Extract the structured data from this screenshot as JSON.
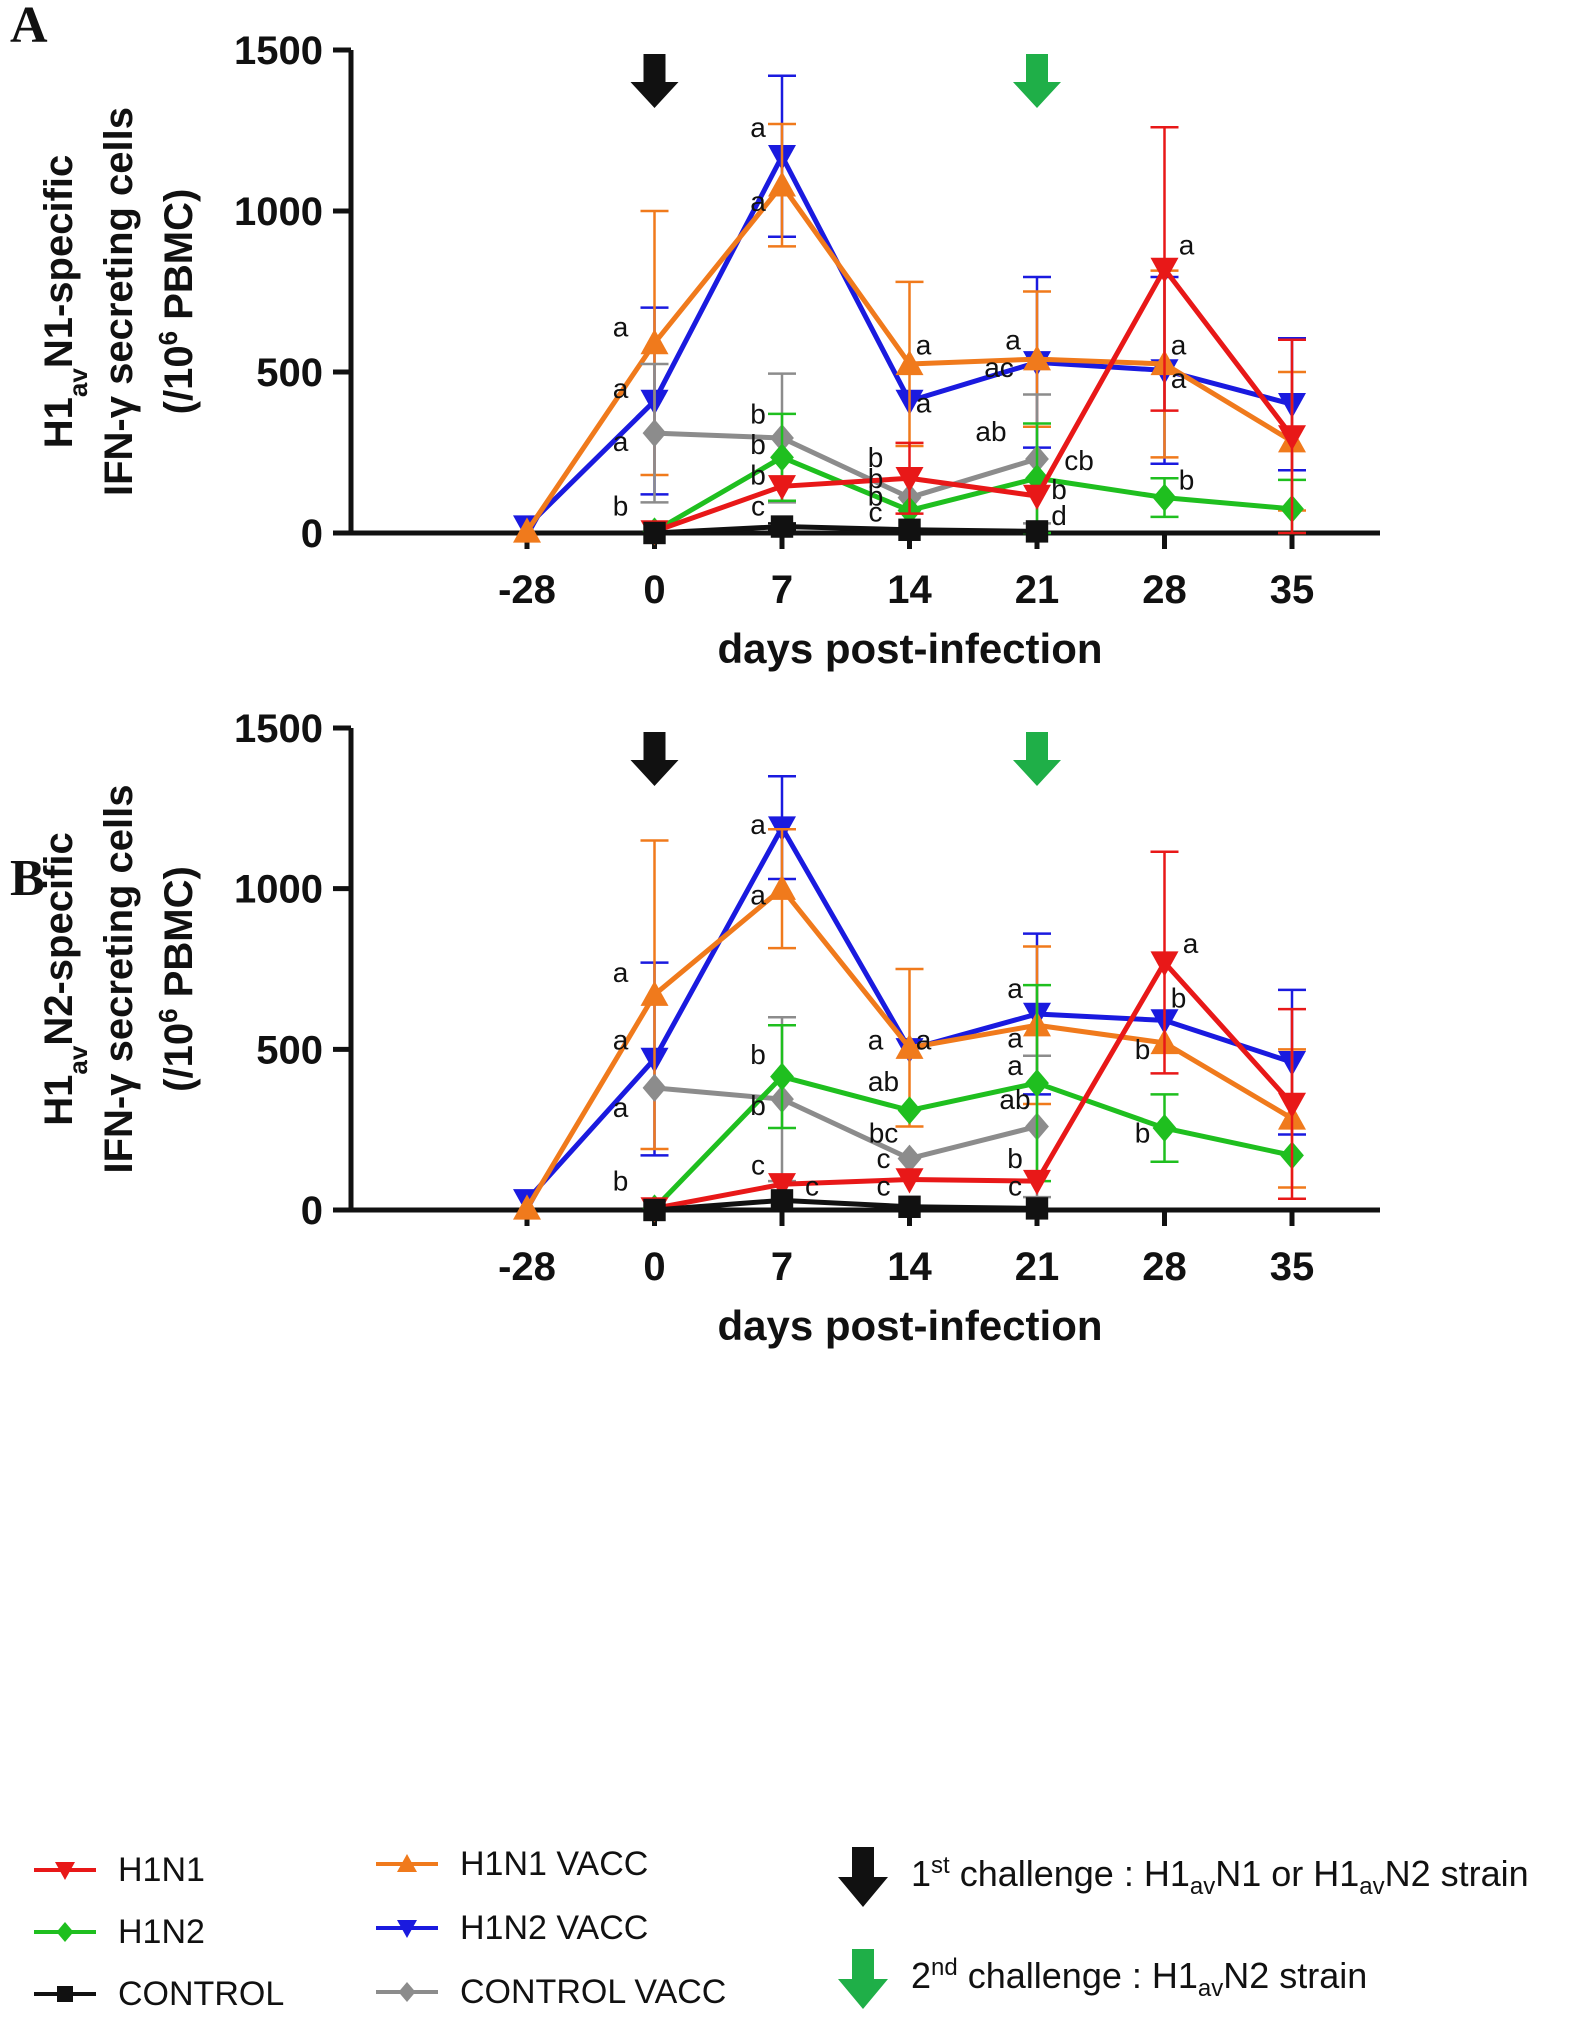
{
  "chart_data": [
    {
      "panel_label": "A",
      "type": "line",
      "ylabel_lines": [
        "H1avN1-specific",
        "IFN-γ secreting cells",
        "(/10^6 PBMC)"
      ],
      "ylabel_parts": [
        [
          {
            "t": "H1"
          },
          {
            "t": "av",
            "sub": true
          },
          {
            "t": "N1-specific"
          }
        ],
        [
          {
            "t": "IFN-γ secreting cells"
          }
        ],
        [
          {
            "t": "(/10"
          },
          {
            "t": "6",
            "sup": true
          },
          {
            "t": " PBMC)"
          }
        ]
      ],
      "xlabel": "days post-infection",
      "categories": [
        "-28",
        "0",
        "7",
        "14",
        "21",
        "28",
        "35"
      ],
      "x": [
        -28,
        0,
        7,
        14,
        21,
        28,
        35
      ],
      "ylim": [
        0,
        1500
      ],
      "yticks": [
        0,
        500,
        1000,
        1500
      ],
      "series": [
        {
          "name": "H1N2 VACC",
          "color": "#1a1adf",
          "marker": "tri-down",
          "values": [
            20,
            410,
            1170,
            410,
            530,
            505,
            400
          ],
          "err": [
            null,
            290,
            250,
            null,
            265,
            290,
            205
          ]
        },
        {
          "name": "H1N1 VACC",
          "color": "#f07a1c",
          "marker": "tri-up",
          "values": [
            5,
            590,
            1080,
            525,
            540,
            525,
            285
          ],
          "err": [
            null,
            410,
            190,
            255,
            210,
            290,
            215
          ]
        },
        {
          "name": "CONTROL VACC",
          "color": "#8c8c8c",
          "marker": "diamond",
          "values": [
            null,
            310,
            295,
            110,
            230,
            null,
            null
          ],
          "err": [
            null,
            215,
            200,
            null,
            200,
            null,
            null
          ]
        },
        {
          "name": "H1N2",
          "color": "#1fbf1f",
          "marker": "diamond",
          "values": [
            null,
            5,
            235,
            70,
            170,
            110,
            75
          ],
          "err": [
            null,
            null,
            135,
            null,
            170,
            60,
            90
          ]
        },
        {
          "name": "H1N1",
          "color": "#e81818",
          "marker": "tri-down",
          "values": [
            null,
            5,
            145,
            170,
            115,
            820,
            300
          ],
          "err": [
            null,
            null,
            null,
            110,
            null,
            440,
            300
          ]
        },
        {
          "name": "CONTROL",
          "color": "#111111",
          "marker": "square",
          "values": [
            null,
            0,
            20,
            10,
            5,
            null,
            null
          ],
          "err": [
            null,
            null,
            10,
            null,
            null,
            null,
            null
          ]
        }
      ],
      "annotations": [
        {
          "text": "a",
          "x": 7,
          "y": 1230,
          "dx": -24
        },
        {
          "text": "a",
          "x": 7,
          "y": 1000,
          "dx": -24
        },
        {
          "text": "a",
          "x": 0,
          "y": 610,
          "dx": -34
        },
        {
          "text": "a",
          "x": 0,
          "y": 420,
          "dx": -34
        },
        {
          "text": "a",
          "x": 0,
          "y": 255,
          "dx": -34
        },
        {
          "text": "b",
          "x": 0,
          "y": 55,
          "dx": -34
        },
        {
          "text": "b",
          "x": 7,
          "y": 340,
          "dx": -24
        },
        {
          "text": "b",
          "x": 7,
          "y": 245,
          "dx": -24
        },
        {
          "text": "b",
          "x": 7,
          "y": 150,
          "dx": -24
        },
        {
          "text": "c",
          "x": 7,
          "y": 55,
          "dx": -24
        },
        {
          "text": "a",
          "x": 14,
          "y": 555,
          "dx": 14
        },
        {
          "text": "a",
          "x": 14,
          "y": 375,
          "dx": 14
        },
        {
          "text": "b",
          "x": 14,
          "y": 205,
          "dx": -34
        },
        {
          "text": "b",
          "x": 14,
          "y": 140,
          "dx": -34
        },
        {
          "text": "b",
          "x": 14,
          "y": 85,
          "dx": -34
        },
        {
          "text": "c",
          "x": 14,
          "y": 35,
          "dx": -34
        },
        {
          "text": "a",
          "x": 21,
          "y": 570,
          "dx": -24
        },
        {
          "text": "ac",
          "x": 21,
          "y": 485,
          "dx": -38
        },
        {
          "text": "ab",
          "x": 21,
          "y": 285,
          "dx": -46
        },
        {
          "text": "cb",
          "x": 21,
          "y": 195,
          "dx": 42
        },
        {
          "text": "b",
          "x": 21,
          "y": 105,
          "dx": 22
        },
        {
          "text": "d",
          "x": 21,
          "y": 25,
          "dx": 22
        },
        {
          "text": "a",
          "x": 28,
          "y": 865,
          "dx": 22
        },
        {
          "text": "a",
          "x": 28,
          "y": 555,
          "dx": 14
        },
        {
          "text": "a",
          "x": 28,
          "y": 450,
          "dx": 14
        },
        {
          "text": "b",
          "x": 28,
          "y": 135,
          "dx": 22
        }
      ],
      "arrows": [
        {
          "label": "1st challenge",
          "x": 0,
          "color": "#111111"
        },
        {
          "label": "2nd challenge",
          "x": 21,
          "color": "#1faf48"
        }
      ]
    },
    {
      "panel_label": "B",
      "type": "line",
      "ylabel_lines": [
        "H1avN2-specific",
        "IFN-γ secreting cells",
        "(/10^6 PBMC)"
      ],
      "ylabel_parts": [
        [
          {
            "t": "H1"
          },
          {
            "t": "av",
            "sub": true
          },
          {
            "t": "N2-specific"
          }
        ],
        [
          {
            "t": "IFN-γ secreting cells"
          }
        ],
        [
          {
            "t": "(/10"
          },
          {
            "t": "6",
            "sup": true
          },
          {
            "t": " PBMC)"
          }
        ]
      ],
      "xlabel": "days post-infection",
      "categories": [
        "-28",
        "0",
        "7",
        "14",
        "21",
        "28",
        "35"
      ],
      "x": [
        -28,
        0,
        7,
        14,
        21,
        28,
        35
      ],
      "ylim": [
        0,
        1500
      ],
      "yticks": [
        0,
        500,
        1000,
        1500
      ],
      "series": [
        {
          "name": "H1N2 VACC",
          "color": "#1a1adf",
          "marker": "tri-down",
          "values": [
            30,
            470,
            1190,
            500,
            610,
            590,
            460
          ],
          "err": [
            null,
            300,
            160,
            null,
            250,
            null,
            225
          ]
        },
        {
          "name": "H1N1 VACC",
          "color": "#f07a1c",
          "marker": "tri-up",
          "values": [
            5,
            670,
            1000,
            505,
            575,
            520,
            285
          ],
          "err": [
            null,
            480,
            185,
            245,
            245,
            null,
            215
          ]
        },
        {
          "name": "CONTROL VACC",
          "color": "#8c8c8c",
          "marker": "diamond",
          "values": [
            null,
            380,
            345,
            160,
            260,
            null,
            null
          ],
          "err": [
            null,
            null,
            255,
            null,
            220,
            null,
            null
          ]
        },
        {
          "name": "H1N2",
          "color": "#1fbf1f",
          "marker": "diamond",
          "values": [
            null,
            5,
            415,
            310,
            395,
            255,
            170
          ],
          "err": [
            null,
            null,
            160,
            null,
            305,
            105,
            null
          ]
        },
        {
          "name": "H1N1",
          "color": "#e81818",
          "marker": "tri-down",
          "values": [
            null,
            5,
            80,
            95,
            90,
            770,
            330
          ],
          "err": [
            null,
            null,
            null,
            null,
            null,
            345,
            295
          ]
        },
        {
          "name": "CONTROL",
          "color": "#111111",
          "marker": "square",
          "values": [
            null,
            0,
            30,
            10,
            5,
            null,
            null
          ],
          "err": [
            null,
            null,
            null,
            null,
            null,
            null,
            null
          ]
        }
      ],
      "annotations": [
        {
          "text": "a",
          "x": 7,
          "y": 1170,
          "dx": -24
        },
        {
          "text": "a",
          "x": 7,
          "y": 950,
          "dx": -24
        },
        {
          "text": "a",
          "x": 0,
          "y": 710,
          "dx": -34
        },
        {
          "text": "a",
          "x": 0,
          "y": 500,
          "dx": -34
        },
        {
          "text": "a",
          "x": 0,
          "y": 290,
          "dx": -34
        },
        {
          "text": "b",
          "x": 0,
          "y": 60,
          "dx": -34
        },
        {
          "text": "b",
          "x": 7,
          "y": 455,
          "dx": -24
        },
        {
          "text": "b",
          "x": 7,
          "y": 295,
          "dx": -24
        },
        {
          "text": "c",
          "x": 7,
          "y": 110,
          "dx": -24
        },
        {
          "text": "c",
          "x": 7,
          "y": 45,
          "dx": 30
        },
        {
          "text": "a",
          "x": 14,
          "y": 500,
          "dx": -34
        },
        {
          "text": "a",
          "x": 14,
          "y": 500,
          "dx": 14
        },
        {
          "text": "ab",
          "x": 14,
          "y": 370,
          "dx": -26
        },
        {
          "text": "bc",
          "x": 14,
          "y": 210,
          "dx": -26
        },
        {
          "text": "c",
          "x": 14,
          "y": 130,
          "dx": -26
        },
        {
          "text": "c",
          "x": 14,
          "y": 45,
          "dx": -26
        },
        {
          "text": "a",
          "x": 21,
          "y": 660,
          "dx": -22
        },
        {
          "text": "a",
          "x": 21,
          "y": 505,
          "dx": -22
        },
        {
          "text": "a",
          "x": 21,
          "y": 420,
          "dx": -22
        },
        {
          "text": "ab",
          "x": 21,
          "y": 315,
          "dx": -22
        },
        {
          "text": "b",
          "x": 21,
          "y": 130,
          "dx": -22
        },
        {
          "text": "c",
          "x": 21,
          "y": 45,
          "dx": -22
        },
        {
          "text": "a",
          "x": 28,
          "y": 800,
          "dx": 26
        },
        {
          "text": "b",
          "x": 28,
          "y": 630,
          "dx": 14
        },
        {
          "text": "b",
          "x": 28,
          "y": 470,
          "dx": -22
        },
        {
          "text": "b",
          "x": 28,
          "y": 210,
          "dx": -22
        }
      ],
      "arrows": [
        {
          "label": "1st challenge",
          "x": 0,
          "color": "#111111"
        },
        {
          "label": "2nd challenge",
          "x": 21,
          "color": "#1faf48"
        }
      ]
    }
  ],
  "legend": {
    "groups": [
      {
        "name": "H1N1",
        "color": "#e81818",
        "marker": "tri-down"
      },
      {
        "name": "H1N2",
        "color": "#1fbf1f",
        "marker": "diamond"
      },
      {
        "name": "CONTROL",
        "color": "#111111",
        "marker": "square"
      },
      {
        "name": "H1N1 VACC",
        "color": "#f07a1c",
        "marker": "tri-up"
      },
      {
        "name": "H1N2 VACC",
        "color": "#1a1adf",
        "marker": "tri-down"
      },
      {
        "name": "CONTROL VACC",
        "color": "#8c8c8c",
        "marker": "diamond"
      }
    ],
    "challenge_1": {
      "color": "#111111",
      "parts": [
        {
          "t": "1"
        },
        {
          "t": "st",
          "sup": true
        },
        {
          "t": " challenge : H1"
        },
        {
          "t": "av",
          "sub": true
        },
        {
          "t": "N1 or H1"
        },
        {
          "t": "av",
          "sub": true
        },
        {
          "t": "N2 strain"
        }
      ]
    },
    "challenge_2": {
      "color": "#1faf48",
      "parts": [
        {
          "t": "2"
        },
        {
          "t": "nd",
          "sup": true
        },
        {
          "t": " challenge : H1"
        },
        {
          "t": "av",
          "sub": true
        },
        {
          "t": "N2 strain"
        }
      ]
    }
  }
}
